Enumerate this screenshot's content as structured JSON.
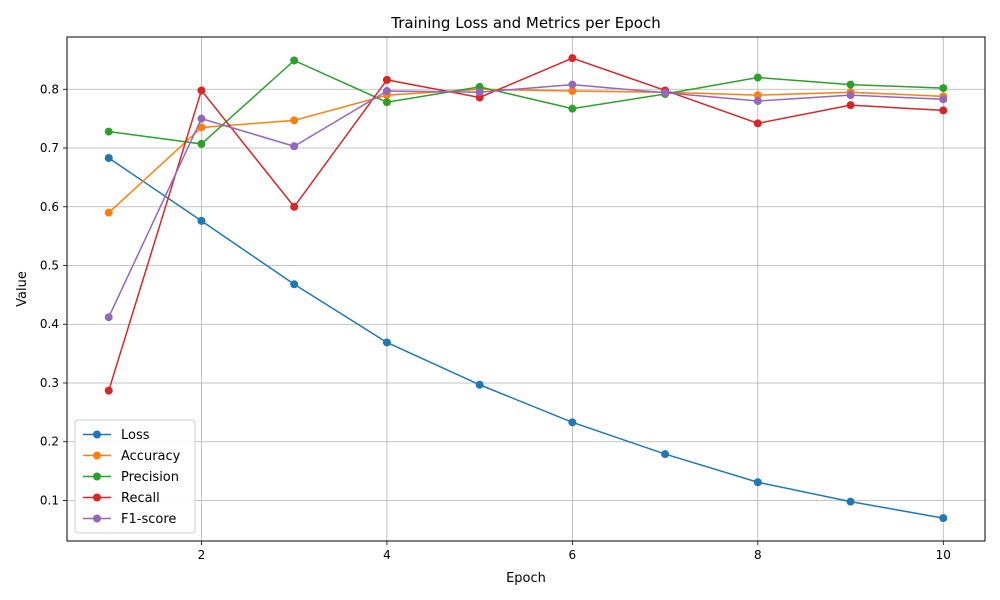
{
  "chart_data": {
    "type": "line",
    "title": "Training Loss and Metrics per Epoch",
    "xlabel": "Epoch",
    "ylabel": "Value",
    "x": [
      1,
      2,
      3,
      4,
      5,
      6,
      7,
      8,
      9,
      10
    ],
    "xlim": [
      0.55,
      10.45
    ],
    "ylim": [
      0.031,
      0.889
    ],
    "xticks": [
      2,
      4,
      6,
      8,
      10
    ],
    "yticks": [
      0.1,
      0.2,
      0.3,
      0.4,
      0.5,
      0.6,
      0.7,
      0.8
    ],
    "xtick_labels": [
      "2",
      "4",
      "6",
      "8",
      "10"
    ],
    "ytick_labels": [
      "0.1",
      "0.2",
      "0.3",
      "0.4",
      "0.5",
      "0.6",
      "0.7",
      "0.8"
    ],
    "grid": true,
    "legend_position": "lower-left",
    "series": [
      {
        "name": "Loss",
        "color": "#1f77b4",
        "values": [
          0.683,
          0.576,
          0.468,
          0.369,
          0.297,
          0.233,
          0.179,
          0.131,
          0.098,
          0.07
        ]
      },
      {
        "name": "Accuracy",
        "color": "#ff7f0e",
        "values": [
          0.59,
          0.735,
          0.747,
          0.79,
          0.8,
          0.797,
          0.795,
          0.79,
          0.795,
          0.788
        ]
      },
      {
        "name": "Precision",
        "color": "#2ca02c",
        "values": [
          0.728,
          0.707,
          0.849,
          0.778,
          0.804,
          0.767,
          0.792,
          0.82,
          0.808,
          0.802
        ]
      },
      {
        "name": "Recall",
        "color": "#d62728",
        "values": [
          0.287,
          0.798,
          0.6,
          0.816,
          0.786,
          0.853,
          0.798,
          0.742,
          0.773,
          0.764
        ]
      },
      {
        "name": "F1-score",
        "color": "#9467bd",
        "values": [
          0.412,
          0.75,
          0.703,
          0.797,
          0.795,
          0.808,
          0.794,
          0.78,
          0.79,
          0.783
        ]
      }
    ]
  }
}
